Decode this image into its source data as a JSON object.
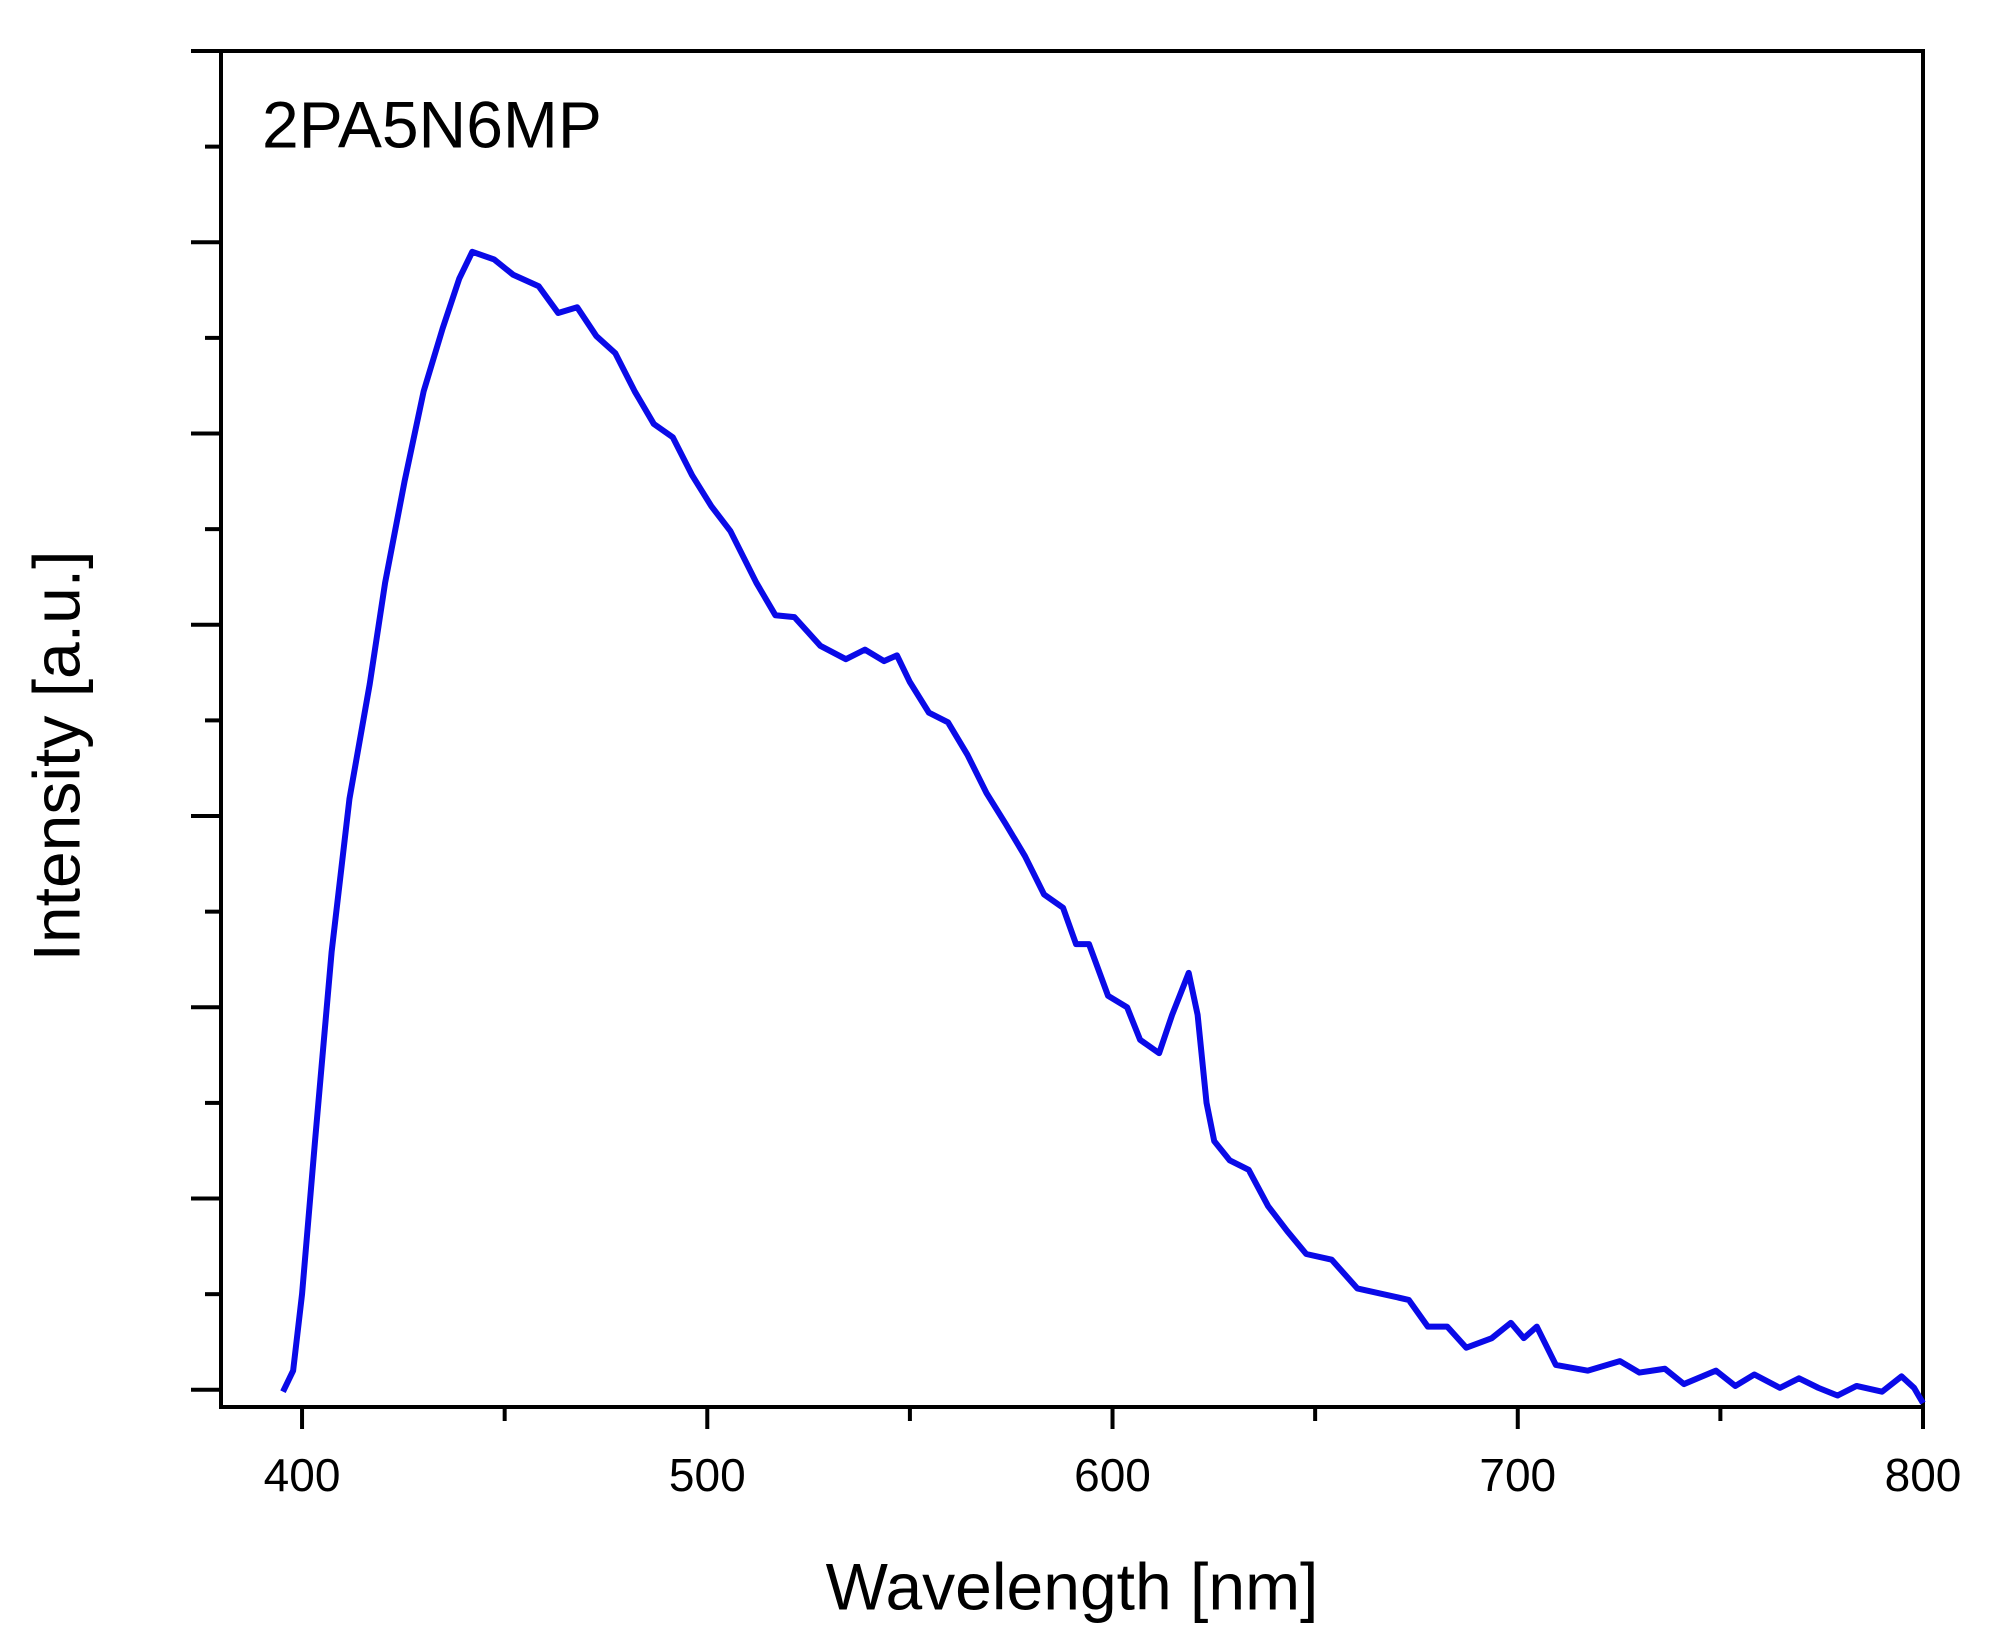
{
  "chart_data": {
    "type": "line",
    "annotation": "2PA5N6MP",
    "xlabel": "Wavelength [nm]",
    "ylabel": "Intensity [a.u.]",
    "xlim": [
      380,
      800
    ],
    "xticks": [
      400,
      500,
      600,
      700,
      800
    ],
    "xminorticks": [
      450,
      550,
      650,
      750
    ],
    "ylim": [
      -0.09,
      7.0
    ],
    "yticks": [
      0,
      1,
      2,
      3,
      4,
      5,
      6,
      7
    ],
    "yminorticks": [
      0.5,
      1.5,
      2.5,
      3.5,
      4.5,
      5.5,
      6.5
    ],
    "series": [
      {
        "color": "#0a0ae8",
        "x": [
          395.3,
          397.8,
          400,
          403.2,
          407.3,
          411.7,
          416.7,
          420.5,
          425.3,
          430,
          434.7,
          438.8,
          442,
          447.4,
          452.1,
          458.4,
          463.2,
          467.9,
          472.6,
          477.3,
          482.1,
          486.8,
          491.5,
          496.3,
          501,
          505.7,
          512.1,
          516.8,
          521.5,
          527.9,
          534.2,
          538.9,
          543.6,
          546.8,
          550,
          554.7,
          559.4,
          564.2,
          568.9,
          573.6,
          578.4,
          583.1,
          587.8,
          591,
          594.2,
          598.9,
          603.6,
          606.8,
          611.5,
          614.7,
          618.8,
          621,
          623.2,
          625.1,
          628.9,
          633.6,
          638.4,
          643.1,
          647.8,
          654.1,
          660.4,
          666.8,
          673.1,
          677.8,
          682.6,
          687.3,
          693.6,
          698.3,
          701.5,
          704.7,
          709.4,
          717.3,
          725.2,
          730,
          736.3,
          741,
          748.9,
          753.7,
          758.4,
          764.7,
          769.4,
          774.2,
          778.9,
          783.6,
          789.9,
          794.7,
          797.8,
          800
        ],
        "values": [
          -0.01,
          0.1,
          0.5,
          1.3,
          2.29,
          3.09,
          3.69,
          4.22,
          4.75,
          5.22,
          5.55,
          5.81,
          5.95,
          5.91,
          5.83,
          5.77,
          5.63,
          5.66,
          5.51,
          5.42,
          5.22,
          5.05,
          4.98,
          4.78,
          4.62,
          4.49,
          4.22,
          4.05,
          4.04,
          3.89,
          3.82,
          3.87,
          3.81,
          3.84,
          3.7,
          3.54,
          3.49,
          3.32,
          3.12,
          2.96,
          2.79,
          2.59,
          2.52,
          2.33,
          2.33,
          2.06,
          2.0,
          1.83,
          1.76,
          1.96,
          2.18,
          1.96,
          1.5,
          1.3,
          1.2,
          1.15,
          0.96,
          0.83,
          0.71,
          0.68,
          0.53,
          0.5,
          0.47,
          0.33,
          0.33,
          0.22,
          0.27,
          0.35,
          0.27,
          0.33,
          0.13,
          0.1,
          0.15,
          0.09,
          0.11,
          0.03,
          0.1,
          0.02,
          0.08,
          0.01,
          0.06,
          0.01,
          -0.03,
          0.02,
          -0.01,
          0.07,
          0.01,
          -0.07
        ]
      }
    ]
  }
}
